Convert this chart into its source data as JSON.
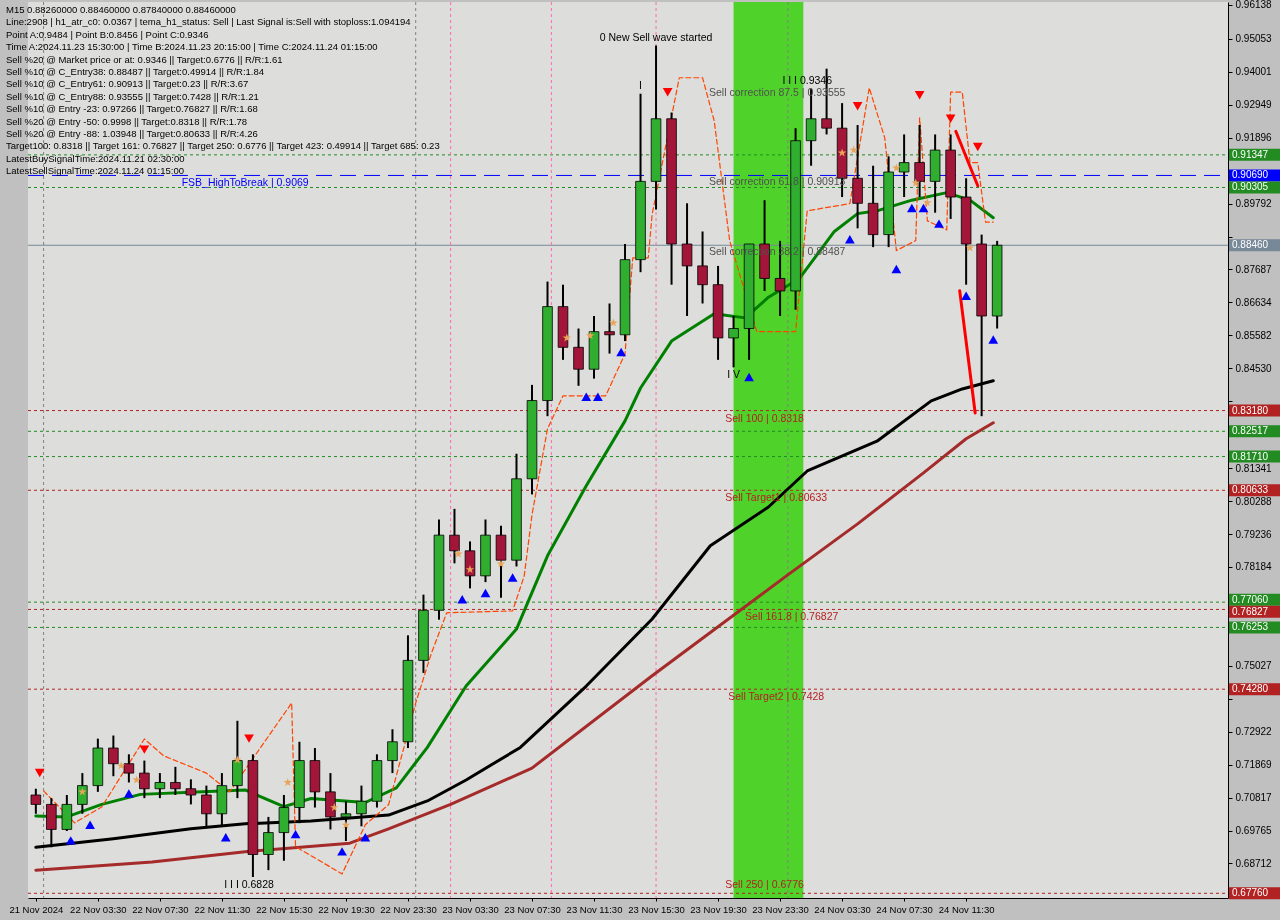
{
  "chart_data": {
    "type": "candlestick",
    "x": [
      "2024-11-21T23:30",
      "2024-11-22T00:30",
      "2024-11-22T01:30",
      "2024-11-22T02:30",
      "2024-11-22T03:30",
      "2024-11-22T04:30",
      "2024-11-22T05:30",
      "2024-11-22T06:30",
      "2024-11-22T07:30",
      "2024-11-22T08:30",
      "2024-11-22T09:30",
      "2024-11-22T10:30",
      "2024-11-22T11:30",
      "2024-11-22T12:30",
      "2024-11-22T13:30",
      "2024-11-22T14:30",
      "2024-11-22T15:30",
      "2024-11-22T16:30",
      "2024-11-22T17:30",
      "2024-11-22T18:30",
      "2024-11-22T19:30",
      "2024-11-22T20:30",
      "2024-11-22T21:30",
      "2024-11-22T22:30",
      "2024-11-22T23:30",
      "2024-11-23T00:30",
      "2024-11-23T01:30",
      "2024-11-23T02:30",
      "2024-11-23T03:30",
      "2024-11-23T04:30",
      "2024-11-23T05:30",
      "2024-11-23T06:30",
      "2024-11-23T07:30",
      "2024-11-23T08:30",
      "2024-11-23T09:30",
      "2024-11-23T10:30",
      "2024-11-23T11:30",
      "2024-11-23T12:30",
      "2024-11-23T13:30",
      "2024-11-23T14:30",
      "2024-11-23T15:30",
      "2024-11-23T16:30",
      "2024-11-23T17:30",
      "2024-11-23T18:30",
      "2024-11-23T19:30",
      "2024-11-23T20:30",
      "2024-11-23T21:30",
      "2024-11-23T22:30",
      "2024-11-23T23:30",
      "2024-11-24T00:30",
      "2024-11-24T01:30",
      "2024-11-24T02:30",
      "2024-11-24T03:30",
      "2024-11-24T04:30",
      "2024-11-24T05:30",
      "2024-11-24T06:30",
      "2024-11-24T07:30",
      "2024-11-24T08:30",
      "2024-11-24T09:30",
      "2024-11-24T10:30",
      "2024-11-24T11:30",
      "2024-11-24T12:30",
      "2024-11-24T13:30"
    ],
    "ohlc": [
      [
        0.709,
        0.711,
        0.703,
        0.706
      ],
      [
        0.706,
        0.708,
        0.6923,
        0.698
      ],
      [
        0.698,
        0.709,
        0.6975,
        0.706
      ],
      [
        0.706,
        0.716,
        0.703,
        0.712
      ],
      [
        0.712,
        0.727,
        0.71,
        0.724
      ],
      [
        0.724,
        0.728,
        0.715,
        0.719
      ],
      [
        0.719,
        0.722,
        0.713,
        0.716
      ],
      [
        0.716,
        0.72,
        0.708,
        0.711
      ],
      [
        0.711,
        0.716,
        0.708,
        0.713
      ],
      [
        0.713,
        0.718,
        0.709,
        0.711
      ],
      [
        0.711,
        0.714,
        0.706,
        0.709
      ],
      [
        0.709,
        0.712,
        0.699,
        0.703
      ],
      [
        0.703,
        0.716,
        0.699,
        0.712
      ],
      [
        0.712,
        0.7327,
        0.708,
        0.72
      ],
      [
        0.72,
        0.722,
        0.6828,
        0.69
      ],
      [
        0.69,
        0.702,
        0.685,
        0.697
      ],
      [
        0.697,
        0.709,
        0.688,
        0.705
      ],
      [
        0.705,
        0.726,
        0.7,
        0.72
      ],
      [
        0.72,
        0.724,
        0.705,
        0.71
      ],
      [
        0.71,
        0.716,
        0.698,
        0.702
      ],
      [
        0.702,
        0.707,
        0.6943,
        0.703
      ],
      [
        0.703,
        0.712,
        0.699,
        0.707
      ],
      [
        0.707,
        0.722,
        0.705,
        0.72
      ],
      [
        0.72,
        0.73,
        0.716,
        0.726
      ],
      [
        0.726,
        0.76,
        0.724,
        0.752
      ],
      [
        0.752,
        0.773,
        0.748,
        0.768
      ],
      [
        0.768,
        0.797,
        0.765,
        0.792
      ],
      [
        0.792,
        0.8004,
        0.783,
        0.787
      ],
      [
        0.787,
        0.79,
        0.775,
        0.779
      ],
      [
        0.779,
        0.797,
        0.777,
        0.792
      ],
      [
        0.792,
        0.795,
        0.772,
        0.784
      ],
      [
        0.784,
        0.818,
        0.782,
        0.81
      ],
      [
        0.81,
        0.84,
        0.805,
        0.835
      ],
      [
        0.835,
        0.873,
        0.83,
        0.865
      ],
      [
        0.865,
        0.872,
        0.848,
        0.852
      ],
      [
        0.852,
        0.858,
        0.8397,
        0.845
      ],
      [
        0.845,
        0.862,
        0.842,
        0.857
      ],
      [
        0.857,
        0.866,
        0.85,
        0.856
      ],
      [
        0.856,
        0.885,
        0.854,
        0.88
      ],
      [
        0.88,
        0.933,
        0.876,
        0.905
      ],
      [
        0.905,
        0.9484,
        0.896,
        0.925
      ],
      [
        0.925,
        0.927,
        0.872,
        0.885
      ],
      [
        0.885,
        0.898,
        0.862,
        0.878
      ],
      [
        0.878,
        0.889,
        0.866,
        0.872
      ],
      [
        0.872,
        0.878,
        0.848,
        0.855
      ],
      [
        0.855,
        0.862,
        0.8456,
        0.858
      ],
      [
        0.858,
        0.885,
        0.848,
        0.885
      ],
      [
        0.885,
        0.899,
        0.87,
        0.874
      ],
      [
        0.874,
        0.886,
        0.862,
        0.87
      ],
      [
        0.87,
        0.922,
        0.864,
        0.918
      ],
      [
        0.918,
        0.9346,
        0.91,
        0.925
      ],
      [
        0.925,
        0.941,
        0.92,
        0.922
      ],
      [
        0.922,
        0.93,
        0.9,
        0.906
      ],
      [
        0.906,
        0.923,
        0.89,
        0.898
      ],
      [
        0.898,
        0.91,
        0.884,
        0.888
      ],
      [
        0.888,
        0.913,
        0.884,
        0.908
      ],
      [
        0.908,
        0.92,
        0.9,
        0.911
      ],
      [
        0.911,
        0.923,
        0.9,
        0.905
      ],
      [
        0.905,
        0.92,
        0.895,
        0.915
      ],
      [
        0.915,
        0.92,
        0.893,
        0.9
      ],
      [
        0.9,
        0.906,
        0.872,
        0.885
      ],
      [
        0.885,
        0.888,
        0.83,
        0.862
      ],
      [
        0.862,
        0.886,
        0.858,
        0.8846
      ]
    ],
    "colors": [
      "#a3163a",
      "#a3163a",
      "#2fae2f",
      "#2fae2f",
      "#2fae2f",
      "#a3163a",
      "#a3163a",
      "#a3163a",
      "#2fae2f",
      "#a3163a",
      "#a3163a",
      "#a3163a",
      "#2fae2f",
      "#2fae2f",
      "#a3163a",
      "#2fae2f",
      "#2fae2f",
      "#2fae2f",
      "#a3163a",
      "#a3163a",
      "#2fae2f",
      "#2fae2f",
      "#2fae2f",
      "#2fae2f",
      "#2fae2f",
      "#2fae2f",
      "#2fae2f",
      "#a3163a",
      "#a3163a",
      "#2fae2f",
      "#a3163a",
      "#2fae2f",
      "#2fae2f",
      "#2fae2f",
      "#a3163a",
      "#a3163a",
      "#2fae2f",
      "#a3163a",
      "#2fae2f",
      "#2fae2f",
      "#2fae2f",
      "#a3163a",
      "#a3163a",
      "#a3163a",
      "#a3163a",
      "#2fae2f",
      "#2fae2f",
      "#a3163a",
      "#a3163a",
      "#2fae2f",
      "#2fae2f",
      "#a3163a",
      "#a3163a",
      "#a3163a",
      "#a3163a",
      "#2fae2f",
      "#2fae2f",
      "#a3163a",
      "#2fae2f",
      "#a3163a",
      "#a3163a",
      "#a3163a",
      "#2fae2f"
    ],
    "series": [
      {
        "type": "line",
        "color": "#008000",
        "line_style": "solid",
        "x": [
          "2024-11-21T23:30",
          "2024-11-22T01:30",
          "2024-11-22T03:45",
          "2024-11-22T06:15",
          "2024-11-22T10:15",
          "2024-11-22T13:00",
          "2024-11-22T15:30",
          "2024-11-22T17:15",
          "2024-11-22T20:45",
          "2024-11-22T22:45",
          "2024-11-23T00:45",
          "2024-11-23T03:15",
          "2024-11-23T06:30",
          "2024-11-23T08:30",
          "2024-11-23T11:00",
          "2024-11-23T13:30",
          "2024-11-23T14:30",
          "2024-11-23T16:30",
          "2024-11-23T19:15",
          "2024-11-23T21:15",
          "2024-11-23T22:45",
          "2024-11-24T00:45",
          "2024-11-24T03:00",
          "2024-11-24T04:30",
          "2024-11-24T05:45",
          "2024-11-24T08:00",
          "2024-11-24T10:15",
          "2024-11-24T11:45",
          "2024-11-24T13:15"
        ],
        "values": [
          0.7023,
          0.702,
          0.706,
          0.7092,
          0.71,
          0.7106,
          0.7053,
          0.7079,
          0.7066,
          0.7113,
          0.7242,
          0.7438,
          0.762,
          0.7854,
          0.8078,
          0.8285,
          0.839,
          0.854,
          0.8627,
          0.8614,
          0.868,
          0.874,
          0.889,
          0.8947,
          0.8956,
          0.899,
          0.9014,
          0.899,
          0.8934
        ]
      },
      {
        "type": "line",
        "color": "#000000",
        "line_style": "solid",
        "x": [
          "2024-11-21T23:30",
          "2024-11-22T04:30",
          "2024-11-22T09:30",
          "2024-11-22T13:00",
          "2024-11-22T17:15",
          "2024-11-22T22:15",
          "2024-11-23T00:45",
          "2024-11-23T03:15",
          "2024-11-23T06:45",
          "2024-11-23T11:00",
          "2024-11-23T15:15",
          "2024-11-23T19:00",
          "2024-11-23T22:45",
          "2024-11-24T01:15",
          "2024-11-24T05:45",
          "2024-11-24T09:15",
          "2024-11-24T11:15",
          "2024-11-24T13:15"
        ],
        "values": [
          0.6923,
          0.695,
          0.6982,
          0.6998,
          0.7007,
          0.7026,
          0.7071,
          0.7138,
          0.7242,
          0.7438,
          0.7652,
          0.7886,
          0.801,
          0.8125,
          0.822,
          0.8349,
          0.8387,
          0.8413
        ]
      },
      {
        "type": "line",
        "color": "#a52a2a",
        "line_style": "solid",
        "x": [
          "2024-11-21T23:30",
          "2024-11-22T07:00",
          "2024-11-22T13:00",
          "2024-11-22T19:45",
          "2024-11-22T22:15",
          "2024-11-23T02:15",
          "2024-11-23T07:30",
          "2024-11-23T15:15",
          "2024-11-23T19:00",
          "2024-11-24T00:00",
          "2024-11-24T04:30",
          "2024-11-24T08:45",
          "2024-11-24T11:30",
          "2024-11-24T13:15"
        ],
        "values": [
          0.685,
          0.6876,
          0.6909,
          0.6936,
          0.6982,
          0.706,
          0.7176,
          0.7471,
          0.7609,
          0.7793,
          0.7956,
          0.8119,
          0.8228,
          0.8279
        ]
      },
      {
        "type": "line",
        "color": "#ff4500",
        "line_style": "dashed",
        "x": [
          "2024-11-22T00:00",
          "2024-11-22T02:00",
          "2024-11-22T03:45",
          "2024-11-22T06:30",
          "2024-11-22T07:45",
          "2024-11-22T10:30",
          "2024-11-22T12:00",
          "2024-11-22T16:00",
          "2024-11-22T16:15",
          "2024-11-22T19:15",
          "2024-11-22T20:45",
          "2024-11-22T22:15",
          "2024-11-22T23:15",
          "2024-11-23T00:00",
          "2024-11-23T01:00",
          "2024-11-23T02:00",
          "2024-11-23T06:15",
          "2024-11-23T07:00",
          "2024-11-23T07:30",
          "2024-11-23T08:30",
          "2024-11-23T09:30",
          "2024-11-23T12:15",
          "2024-11-23T13:30",
          "2024-11-23T14:00",
          "2024-11-23T15:00",
          "2024-11-23T15:15",
          "2024-11-23T17:00",
          "2024-11-23T18:30",
          "2024-11-23T19:15",
          "2024-11-23T20:15",
          "2024-11-23T22:00",
          "2024-11-24T00:30",
          "2024-11-24T01:15",
          "2024-11-24T04:00",
          "2024-11-24T05:15",
          "2024-11-24T06:15",
          "2024-11-24T07:00",
          "2024-11-24T08:15",
          "2024-11-24T08:30",
          "2024-11-24T09:00",
          "2024-11-24T10:15",
          "2024-11-24T10:30",
          "2024-11-24T11:15",
          "2024-11-24T11:45",
          "2024-11-24T12:15",
          "2024-11-24T12:45",
          "2024-11-24T13:15"
        ],
        "values": [
          0.7103,
          0.7001,
          0.7052,
          0.7269,
          0.7215,
          0.716,
          0.71,
          0.7384,
          0.6925,
          0.6838,
          0.6995,
          0.7059,
          0.7244,
          0.7384,
          0.7541,
          0.7672,
          0.7678,
          0.779,
          0.7985,
          0.826,
          0.8365,
          0.8365,
          0.8499,
          0.8806,
          0.8806,
          0.8945,
          0.9381,
          0.9381,
          0.9244,
          0.886,
          0.857,
          0.857,
          0.8956,
          0.8979,
          0.9349,
          0.9189,
          0.8829,
          0.8861,
          0.9253,
          0.8924,
          0.8895,
          0.9335,
          0.9335,
          0.911,
          0.911,
          0.892,
          0.892
        ]
      },
      {
        "type": "line",
        "color": "#ff0000",
        "line_style": "solid",
        "x": [
          "2024-11-24T10:50",
          "2024-11-24T12:15"
        ],
        "values": [
          0.921,
          0.9036
        ]
      },
      {
        "type": "line",
        "color": "#ff0000",
        "line_style": "solid",
        "x": [
          "2024-11-24T11:05",
          "2024-11-24T12:05"
        ],
        "values": [
          0.8701,
          0.831
        ]
      },
      {
        "type": "scatter",
        "color": "#0000ff",
        "marker": "triangle",
        "x": [
          "2024-11-22T01:45",
          "2024-11-22T03:00",
          "2024-11-22T05:30",
          "2024-11-22T11:45",
          "2024-11-22T16:15",
          "2024-11-22T19:15",
          "2024-11-22T20:45",
          "2024-11-23T03:00",
          "2024-11-23T04:30",
          "2024-11-23T06:15",
          "2024-11-23T11:00",
          "2024-11-23T11:45",
          "2024-11-23T13:15",
          "2024-11-23T21:30",
          "2024-11-24T04:00",
          "2024-11-24T07:00",
          "2024-11-24T08:00",
          "2024-11-24T08:45",
          "2024-11-24T09:45",
          "2024-11-24T11:30",
          "2024-11-24T13:15"
        ],
        "values": [
          0.6945,
          0.6995,
          0.7095,
          0.6955,
          0.6965,
          0.691,
          0.6955,
          0.7715,
          0.7735,
          0.7785,
          0.8362,
          0.8362,
          0.8505,
          0.8425,
          0.8865,
          0.877,
          0.8965,
          0.8965,
          0.8915,
          0.8685,
          0.8545
        ]
      },
      {
        "type": "scatter",
        "color": "#ff0000",
        "marker": "triangle",
        "x": [
          "2024-11-21T23:45",
          "2024-11-22T06:30",
          "2024-11-22T13:15",
          "2024-11-23T16:15",
          "2024-11-24T04:30",
          "2024-11-24T08:30",
          "2024-11-24T10:30",
          "2024-11-24T12:15"
        ],
        "values": [
          0.716,
          0.7235,
          0.727,
          0.9335,
          0.929,
          0.9325,
          0.925,
          0.916
        ]
      },
      {
        "type": "scatter",
        "color": "#e8a458",
        "marker": "star",
        "x": [
          "2024-11-22T02:30",
          "2024-11-22T05:00",
          "2024-11-22T06:00",
          "2024-11-22T12:30",
          "2024-11-22T15:45",
          "2024-11-22T18:45",
          "2024-11-22T19:30",
          "2024-11-23T02:45",
          "2024-11-23T03:30",
          "2024-11-23T05:30",
          "2024-11-23T09:45",
          "2024-11-23T11:15",
          "2024-11-23T12:45",
          "2024-11-24T03:30",
          "2024-11-24T04:15",
          "2024-11-24T07:00",
          "2024-11-24T08:15",
          "2024-11-24T09:00",
          "2024-11-24T11:45"
        ],
        "values": [
          0.71,
          0.7183,
          0.7138,
          0.7202,
          0.713,
          0.705,
          0.6994,
          0.786,
          0.781,
          0.7828,
          0.855,
          0.8557,
          0.8598,
          0.9141,
          0.915,
          0.9093,
          0.9045,
          0.8982,
          0.8838
        ]
      }
    ],
    "xlim": [
      "2024-11-21T23:19",
      "2024-11-25T04:04"
    ],
    "ylim": [
      0.6761,
      0.9623
    ],
    "xticks": [
      {
        "value": "2024-11-21T23:30",
        "label": "21 Nov 2024"
      },
      {
        "value": "2024-11-22T03:30",
        "label": "22 Nov 03:30"
      },
      {
        "value": "2024-11-22T07:30",
        "label": "22 Nov 07:30"
      },
      {
        "value": "2024-11-22T11:30",
        "label": "22 Nov 11:30"
      },
      {
        "value": "2024-11-22T15:30",
        "label": "22 Nov 15:30"
      },
      {
        "value": "2024-11-22T19:30",
        "label": "22 Nov 19:30"
      },
      {
        "value": "2024-11-22T23:30",
        "label": "22 Nov 23:30"
      },
      {
        "value": "2024-11-23T03:30",
        "label": "23 Nov 03:30"
      },
      {
        "value": "2024-11-23T07:30",
        "label": "23 Nov 07:30"
      },
      {
        "value": "2024-11-23T11:30",
        "label": "23 Nov 11:30"
      },
      {
        "value": "2024-11-23T15:30",
        "label": "23 Nov 15:30"
      },
      {
        "value": "2024-11-23T19:30",
        "label": "23 Nov 19:30"
      },
      {
        "value": "2024-11-23T23:30",
        "label": "23 Nov 23:30"
      },
      {
        "value": "2024-11-24T03:30",
        "label": "24 Nov 03:30"
      },
      {
        "value": "2024-11-24T07:30",
        "label": "24 Nov 07:30"
      },
      {
        "value": "2024-11-24T11:30",
        "label": "24 Nov 11:30"
      }
    ],
    "yticks": [
      0.96138,
      0.95053,
      0.94001,
      0.92949,
      0.91896,
      0.89792,
      {
        "value": 0.88739,
        "label": null
      },
      0.87687,
      0.86634,
      0.85582,
      {
        "value": 0.8453,
        "label": "0.84530"
      },
      {
        "value": 0.83477,
        "label": null
      },
      0.81341,
      0.80288,
      0.79236,
      0.78184,
      0.75027,
      {
        "value": 0.73974,
        "label": null
      },
      0.72922,
      0.71869,
      0.70817,
      0.69765,
      0.68712
    ],
    "ref_lines": [
      {
        "axis": "y",
        "value": 0.91347,
        "label": "0.91347",
        "color": "#228b22",
        "line_style": "dotted"
      },
      {
        "axis": "y",
        "value": 0.9069,
        "label": "0.90690",
        "color": "#0000ff",
        "line_style": "dashed"
      },
      {
        "axis": "y",
        "value": 0.90305,
        "label": "0.90305",
        "color": "#228b22",
        "line_style": "dotted"
      },
      {
        "axis": "y",
        "value": 0.8846,
        "label": "0.88460",
        "color": "#778899",
        "line_style": "solid"
      },
      {
        "axis": "y",
        "value": 0.8318,
        "label": "0.83180",
        "color": "#b22222",
        "line_style": "dotted"
      },
      {
        "axis": "y",
        "value": 0.82517,
        "label": "0.82517",
        "color": "#228b22",
        "line_style": "dotted"
      },
      {
        "axis": "y",
        "value": 0.8171,
        "label": "0.81710",
        "color": "#228b22",
        "line_style": "dotted"
      },
      {
        "axis": "y",
        "value": 0.80633,
        "label": "0.80633",
        "color": "#b22222",
        "line_style": "dotted"
      },
      {
        "axis": "y",
        "value": 0.7706,
        "label": "0.77060",
        "color": "#228b22",
        "line_style": "dotted"
      },
      {
        "axis": "y",
        "value": 0.76827,
        "label": "0.76827",
        "color": "#b22222",
        "line_style": "dotted"
      },
      {
        "axis": "y",
        "value": 0.76253,
        "label": "0.76253",
        "color": "#228b22",
        "line_style": "dotted"
      },
      {
        "axis": "y",
        "value": 0.7428,
        "label": "0.74280",
        "color": "#b22222",
        "line_style": "dotted"
      },
      {
        "axis": "y",
        "value": 0.6776,
        "label": "0.67760",
        "color": "#b22222",
        "line_style": "dotted"
      },
      {
        "axis": "x",
        "value": "2024-11-22T00:00",
        "color": "#808080",
        "line_style": "dotted"
      },
      {
        "axis": "x",
        "value": "2024-11-23T00:00",
        "color": "#808080",
        "line_style": "dotted"
      },
      {
        "axis": "x",
        "value": "2024-11-24T00:00",
        "color": "#808080",
        "line_style": "dotted"
      },
      {
        "axis": "x",
        "value": "2024-11-23T02:15",
        "color": "#ff69b4",
        "line_style": "dotted"
      },
      {
        "axis": "x",
        "value": "2024-11-23T08:45",
        "color": "#ff69b4",
        "line_style": "dotted"
      },
      {
        "axis": "x",
        "value": "2024-11-23T15:30",
        "color": "#ff69b4",
        "line_style": "dotted"
      }
    ],
    "bands": [
      {
        "axis": "x",
        "from": "2024-11-23T20:30",
        "to": "2024-11-24T01:00",
        "color": "#4fd32a"
      }
    ],
    "annotations": [
      "M15 0.88260000 0.88460000 0.87840000 0.88460000",
      "Line:2908 | h1_atr_c0: 0.0367 | tema_h1_status: Sell | Last Signal is:Sell with stoploss:1.094194",
      "Point A:0.9484 | Point B:0.8456 | Point C:0.9346",
      "Time A:2024.11.23 15:30:00 | Time B:2024.11.23 20:15:00 | Time C:2024.11.24 01:15:00",
      "Sell %20 @ Market price or at: 0.9346 || Target:0.6776 || R/R:1.61",
      "Sell %10 @ C_Entry38: 0.88487 || Target:0.49914 || R/R:1.84",
      "Sell %10 @ C_Entry61: 0.90913 || Target:0.23 || R/R:3.67",
      "Sell %10 @ C_Entry88: 0.93555 || Target:0.7428 || R/R:1.21",
      "Sell %10 @ Entry -23: 0.97266 || Target:0.76827 || R/R:1.68",
      "Sell %20 @ Entry -50: 0.9998 || Target:0.8318 || R/R:1.78",
      "Sell %20 @ Entry -88: 1.03948 || Target:0.80633 || R/R:4.26",
      "Target100: 0.8318 || Target 161: 0.76827 || Target 250: 0.6776 || Target 423: 0.49914 || Target 685: 0.23",
      "LatestBuySignalTime:2024.11.21 02:30:00",
      "LatestSellSignalTime:2024.11.24 01:15:00",
      "Sell correction 87.5 | 0.93555",
      "Sell correction 61.8 | 0.90913",
      "Sell correction 38.2 | 0.88487",
      {
        "text": "FSB_HighToBreak | 0.9069",
        "x": "2024-11-22T13:00",
        "y": 0.9069
      },
      {
        "text": "0 New Sell wave started",
        "x": "2024-11-23T15:30",
        "y": 0.9484
      },
      {
        "text": "I",
        "x": "2024-11-23T14:30",
        "y": 0.933
      },
      {
        "text": "I V",
        "x": "2024-11-23T20:30",
        "y": 0.8456
      },
      {
        "text": "I I I 0.9346",
        "x": "2024-11-24T01:15",
        "y": 0.9346
      },
      {
        "text": "I I I 0.6828",
        "x": "2024-11-22T13:15",
        "y": 0.6828
      },
      {
        "text": "Sell 100 | 0.8318",
        "x": "2024-11-23T22:30",
        "y": 0.8318
      },
      {
        "text": "Sell Target1 | 0.80633",
        "x": "2024-11-23T23:15",
        "y": 0.80633
      },
      {
        "text": "Sell 161.8 | 0.76827",
        "x": "2024-11-24T00:15",
        "y": 0.76827
      },
      {
        "text": "Sell Target2 | 0.7428",
        "x": "2024-11-23T23:15",
        "y": 0.7428
      },
      {
        "text": "Sell 250 | 0.6776",
        "x": "2024-11-23T22:30",
        "y": 0.6776
      }
    ]
  }
}
